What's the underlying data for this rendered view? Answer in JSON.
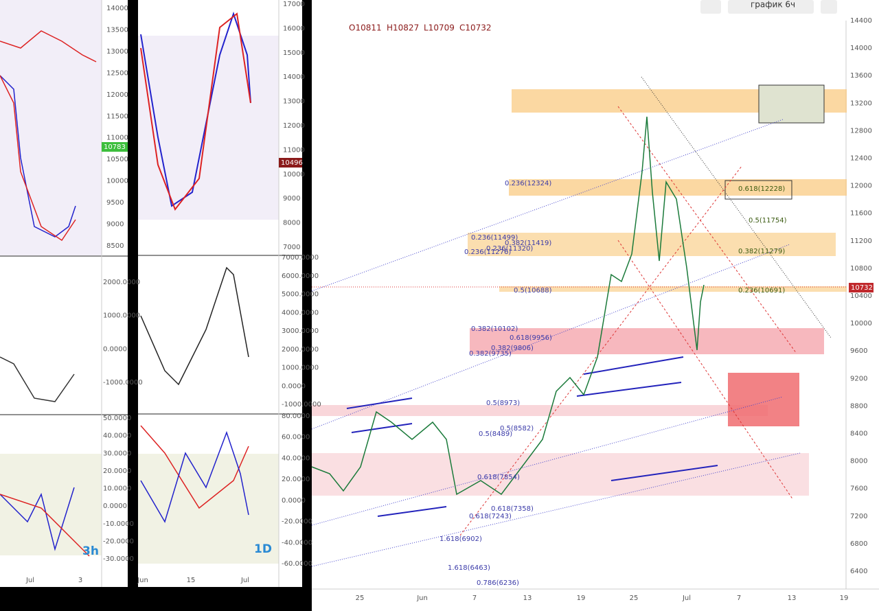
{
  "left_3h": {
    "price_ticks": [
      "14000",
      "13500",
      "13000",
      "12500",
      "12000",
      "11500",
      "11000",
      "10500",
      "10000",
      "9500",
      "9000",
      "8500"
    ],
    "price_tag": "10783",
    "osc_ticks": [
      "2000.0000",
      "1000.0000",
      "0.0000",
      "-1000.0000"
    ],
    "rsi_ticks": [
      "50.0000",
      "40.0000",
      "30.0000",
      "20.0000",
      "10.0000",
      "0.0000",
      "-10.0000",
      "-20.0000",
      "-30.0000"
    ],
    "x_labels": [
      "Jul",
      "3"
    ],
    "timeframe": "3h"
  },
  "left_1d": {
    "price_ticks": [
      "17000",
      "16000",
      "15000",
      "14000",
      "13000",
      "12000",
      "11000",
      "10000",
      "9000",
      "8000",
      "7000"
    ],
    "price_tag": "10496",
    "osc_ticks": [
      "7000.0000",
      "6000.0000",
      "5000.0000",
      "4000.0000",
      "3000.0000",
      "2000.0000",
      "1000.0000",
      "0.0000",
      "-1000.0000"
    ],
    "rsi_ticks": [
      "80.0000",
      "60.0000",
      "40.0000",
      "20.0000",
      "0.0000",
      "-20.0000",
      "-40.0000",
      "-60.0000"
    ],
    "x_labels": [
      "Jun",
      "15",
      "Jul"
    ],
    "timeframe": "1D"
  },
  "main": {
    "toolbar_interval": "график 6ч",
    "ohlc": [
      "O10811",
      "H10827",
      "L10709",
      "C10732"
    ],
    "price_ticks": [
      "14400",
      "14000",
      "13600",
      "13200",
      "12800",
      "12400",
      "12000",
      "11600",
      "11200",
      "10800",
      "10400",
      "10000",
      "9600",
      "9200",
      "8800",
      "8400",
      "8000",
      "7600",
      "7200",
      "6800",
      "6400"
    ],
    "price_tag": "10732",
    "x_labels": [
      "25",
      "Jun",
      "7",
      "13",
      "19",
      "25",
      "Jul",
      "7",
      "13",
      "19"
    ],
    "fib_labels": [
      "0.236(12324)",
      "0.618(12228)",
      "0.5(11754)",
      "0.236(11499)",
      "0.382(11419)",
      "0.236(11320)",
      "0.236(11276)",
      "0.382(11279)",
      "0.5(10688)",
      "0.236(10691)",
      "0.382(10102)",
      "0.618(9956)",
      "0.382(9806)",
      "0.382(9735)",
      "0.5(8973)",
      "0.5(8582)",
      "0.5(8489)",
      "0.618(7854)",
      "0.618(7358)",
      "0.618(7243)",
      "1.618(6902)",
      "1.618(6463)",
      "0.786(6236)"
    ]
  }
}
